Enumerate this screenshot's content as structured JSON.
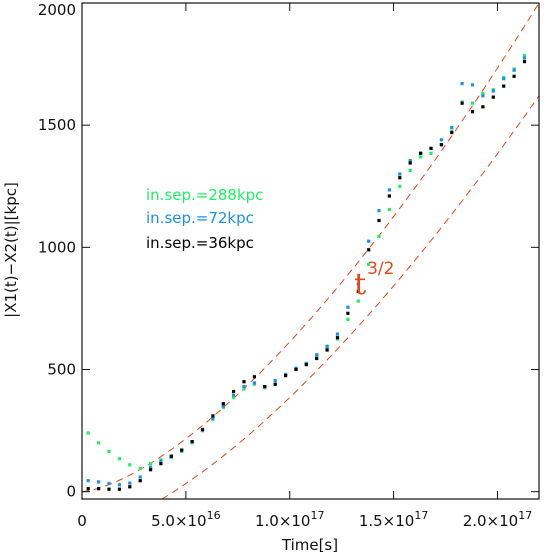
{
  "chart_data": {
    "type": "scatter",
    "xlabel": "Time[s]",
    "ylabel": "|X1(t)−X2(t)|[kpc]",
    "xlim": [
      0,
      2.2e+17
    ],
    "ylim": [
      -30,
      2000
    ],
    "grid": false,
    "legend_position": "left-middle",
    "x_ticks": [
      {
        "value": 0,
        "mantissa": "0",
        "exp": ""
      },
      {
        "value": 5e+16,
        "mantissa": "5.0×10",
        "exp": "16"
      },
      {
        "value": 1e+17,
        "mantissa": "1.0×10",
        "exp": "17"
      },
      {
        "value": 1.5e+17,
        "mantissa": "1.5×10",
        "exp": "17"
      },
      {
        "value": 2e+17,
        "mantissa": "2.0×10",
        "exp": "17"
      }
    ],
    "y_ticks": [
      {
        "value": 0,
        "label": "0"
      },
      {
        "value": 500,
        "label": "500"
      },
      {
        "value": 1000,
        "label": "1000"
      },
      {
        "value": 1500,
        "label": "1500"
      },
      {
        "value": 2000,
        "label": "2000"
      }
    ],
    "series": [
      {
        "name": "in.sep.=288kpc",
        "color": "#22ee66",
        "x": [
          3000000000000000.0,
          8000000000000000.0,
          1.3e+16,
          1.8e+16,
          2.3e+16,
          2.8e+16,
          3.3e+16,
          3.8e+16,
          4.3e+16,
          4.8e+16,
          5.3e+16,
          5.8e+16,
          6.3e+16,
          6.8e+16,
          7.3e+16,
          7.8e+16,
          8.3e+16,
          8.8e+16,
          9.3e+16,
          9.8e+16,
          1.03e+17,
          1.08e+17,
          1.13e+17,
          1.18e+17,
          1.23e+17,
          1.28e+17,
          1.33e+17,
          1.38e+17,
          1.43e+17,
          1.48e+17,
          1.53e+17,
          1.58e+17,
          1.63e+17,
          1.68e+17,
          1.73e+17,
          1.78e+17,
          1.83e+17,
          1.88e+17,
          1.93e+17,
          1.98e+17,
          2.03e+17,
          2.08e+17,
          2.13e+17
        ],
        "y": [
          240,
          200,
          165,
          135,
          110,
          95,
          115,
          130,
          140,
          165,
          200,
          250,
          295,
          345,
          385,
          420,
          440,
          425,
          440,
          480,
          505,
          525,
          555,
          585,
          625,
          705,
          780,
          930,
          1045,
          1155,
          1250,
          1315,
          1370,
          1385,
          1420,
          1475,
          1595,
          1590,
          1630,
          1645,
          1695,
          1730,
          1785
        ]
      },
      {
        "name": "in.sep.=72kpc",
        "color": "#1e90e6",
        "x": [
          3000000000000000.0,
          8000000000000000.0,
          1.3e+16,
          1.8e+16,
          2.3e+16,
          2.8e+16,
          3.3e+16,
          3.8e+16,
          4.3e+16,
          4.8e+16,
          5.3e+16,
          5.8e+16,
          6.3e+16,
          6.8e+16,
          7.3e+16,
          7.8e+16,
          8.3e+16,
          8.8e+16,
          9.3e+16,
          9.8e+16,
          1.03e+17,
          1.08e+17,
          1.13e+17,
          1.18e+17,
          1.23e+17,
          1.28e+17,
          1.33e+17,
          1.38e+17,
          1.43e+17,
          1.48e+17,
          1.53e+17,
          1.58e+17,
          1.63e+17,
          1.68e+17,
          1.73e+17,
          1.78e+17,
          1.83e+17,
          1.88e+17,
          1.93e+17,
          1.98e+17,
          2.03e+17,
          2.08e+17,
          2.13e+17
        ],
        "y": [
          45,
          40,
          34,
          28,
          35,
          60,
          100,
          125,
          145,
          170,
          205,
          250,
          300,
          350,
          395,
          430,
          445,
          430,
          455,
          480,
          505,
          525,
          560,
          595,
          645,
          755,
          850,
          1025,
          1150,
          1235,
          1300,
          1355,
          1385,
          1405,
          1440,
          1490,
          1670,
          1665,
          1620,
          1640,
          1690,
          1725,
          1775
        ]
      },
      {
        "name": "in.sep.=36kpc",
        "color": "#000000",
        "x": [
          3000000000000000.0,
          8000000000000000.0,
          1.3e+16,
          1.8e+16,
          2.3e+16,
          2.8e+16,
          3.3e+16,
          3.8e+16,
          4.3e+16,
          4.8e+16,
          5.3e+16,
          5.8e+16,
          6.3e+16,
          6.8e+16,
          7.3e+16,
          7.8e+16,
          8.3e+16,
          8.8e+16,
          9.3e+16,
          9.8e+16,
          1.03e+17,
          1.08e+17,
          1.13e+17,
          1.18e+17,
          1.23e+17,
          1.28e+17,
          1.33e+17,
          1.38e+17,
          1.43e+17,
          1.48e+17,
          1.53e+17,
          1.58e+17,
          1.63e+17,
          1.68e+17,
          1.73e+17,
          1.78e+17,
          1.83e+17,
          1.88e+17,
          1.93e+17,
          1.98e+17,
          2.03e+17,
          2.08e+17,
          2.13e+17
        ],
        "y": [
          12,
          12,
          10,
          10,
          20,
          45,
          90,
          115,
          145,
          170,
          205,
          255,
          310,
          360,
          410,
          450,
          470,
          430,
          440,
          475,
          500,
          520,
          545,
          580,
          630,
          730,
          820,
          990,
          1110,
          1210,
          1285,
          1345,
          1385,
          1405,
          1420,
          1470,
          1590,
          1555,
          1575,
          1615,
          1660,
          1700,
          1760
        ]
      }
    ],
    "reference_curves": [
      {
        "color": "#e04a1a",
        "dash": true,
        "y_at_xmax": 2000,
        "y_at_zero": 0,
        "power": 1.5
      },
      {
        "color": "#e04a1a",
        "dash": true,
        "y_at_xmax": 1620,
        "y_at_zero": -160,
        "power": 1.5
      }
    ],
    "annotations": [
      {
        "text": "t",
        "superscript": "3/2",
        "color": "#e04a1a",
        "x": 1.31e+17,
        "y": 810
      }
    ]
  }
}
